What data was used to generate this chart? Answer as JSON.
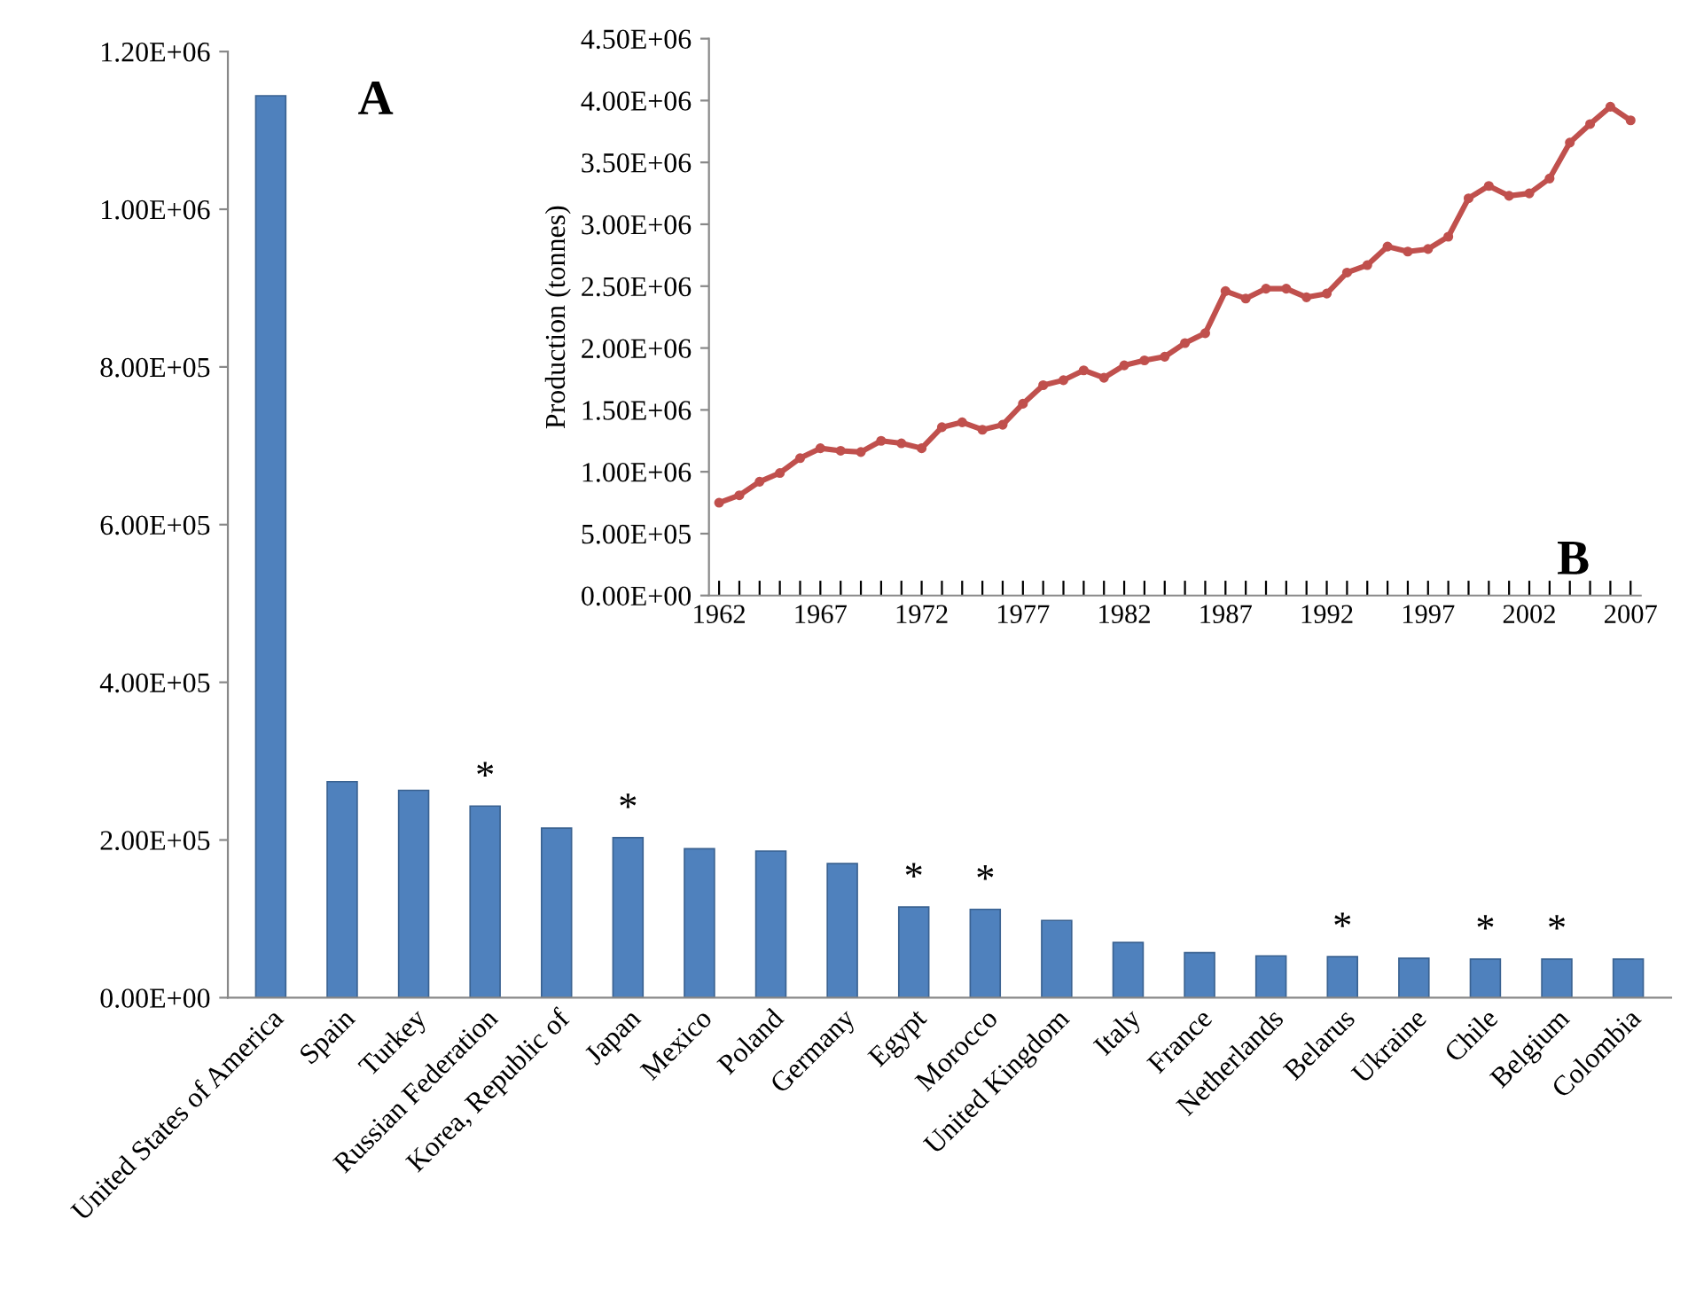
{
  "chart_data": [
    {
      "type": "bar",
      "categories": [
        "United States of America",
        "Spain",
        "Turkey",
        "Russian Federation",
        "Korea, Republic of",
        "Japan",
        "Mexico",
        "Poland",
        "Germany",
        "Egypt",
        "Morocco",
        "United Kingdom",
        "Italy",
        "France",
        "Netherlands",
        "Belarus",
        "Ukraine",
        "Chile",
        "Belgium",
        "Colombia"
      ],
      "series": [
        {
          "color": "#4f81bd",
          "values": [
            1144000,
            274000,
            263000,
            243000,
            215000,
            203000,
            189000,
            186000,
            170000,
            115000,
            112000,
            98000,
            70000,
            57000,
            53000,
            52000,
            50000,
            49000,
            49000,
            49000
          ],
          "value_labels": [
            null,
            null,
            null,
            "*",
            null,
            "*",
            null,
            null,
            null,
            "*",
            "*",
            null,
            null,
            null,
            null,
            "*",
            null,
            "*",
            "*",
            null
          ]
        }
      ],
      "ylim": [
        0,
        1200000
      ],
      "yticks": [
        {
          "value": 0,
          "label": "0.00E+00"
        },
        {
          "value": 200000,
          "label": "2.00E+05"
        },
        {
          "value": 400000,
          "label": "4.00E+05"
        },
        {
          "value": 600000,
          "label": "6.00E+05"
        },
        {
          "value": 800000,
          "label": "8.00E+05"
        },
        {
          "value": 1000000,
          "label": "1.00E+06"
        },
        {
          "value": 1200000,
          "label": "1.20E+06"
        }
      ],
      "grid": false,
      "legend": false,
      "annotations": [
        "A"
      ]
    },
    {
      "type": "line",
      "ylabel": "Production (tonnes)",
      "marker": "circle",
      "line_style": "solid",
      "grid": false,
      "legend": false,
      "x": [
        1962,
        1963,
        1964,
        1965,
        1966,
        1967,
        1968,
        1969,
        1970,
        1971,
        1972,
        1973,
        1974,
        1975,
        1976,
        1977,
        1978,
        1979,
        1980,
        1981,
        1982,
        1983,
        1984,
        1985,
        1986,
        1987,
        1988,
        1989,
        1990,
        1991,
        1992,
        1993,
        1994,
        1995,
        1996,
        1997,
        1998,
        1999,
        2000,
        2001,
        2002,
        2003,
        2004,
        2005,
        2006,
        2007
      ],
      "series": [
        {
          "color": "#c0504d",
          "values": [
            750000,
            810000,
            920000,
            990000,
            1110000,
            1190000,
            1170000,
            1160000,
            1250000,
            1230000,
            1190000,
            1360000,
            1400000,
            1340000,
            1380000,
            1550000,
            1700000,
            1740000,
            1820000,
            1760000,
            1860000,
            1900000,
            1930000,
            2040000,
            2120000,
            2460000,
            2400000,
            2480000,
            2480000,
            2410000,
            2440000,
            2610000,
            2670000,
            2820000,
            2780000,
            2800000,
            2900000,
            3210000,
            3310000,
            3230000,
            3250000,
            3370000,
            3660000,
            3810000,
            3950000,
            3840000
          ]
        }
      ],
      "xlim": [
        1961.5,
        2007.5
      ],
      "xticks": [
        1962,
        {
          "value": 1963,
          "label": null
        },
        {
          "value": 1964,
          "label": null
        },
        {
          "value": 1965,
          "label": null
        },
        {
          "value": 1966,
          "label": null
        },
        1967,
        {
          "value": 1968,
          "label": null
        },
        {
          "value": 1969,
          "label": null
        },
        {
          "value": 1970,
          "label": null
        },
        {
          "value": 1971,
          "label": null
        },
        1972,
        {
          "value": 1973,
          "label": null
        },
        {
          "value": 1974,
          "label": null
        },
        {
          "value": 1975,
          "label": null
        },
        {
          "value": 1976,
          "label": null
        },
        1977,
        {
          "value": 1978,
          "label": null
        },
        {
          "value": 1979,
          "label": null
        },
        {
          "value": 1980,
          "label": null
        },
        {
          "value": 1981,
          "label": null
        },
        1982,
        {
          "value": 1983,
          "label": null
        },
        {
          "value": 1984,
          "label": null
        },
        {
          "value": 1985,
          "label": null
        },
        {
          "value": 1986,
          "label": null
        },
        1987,
        {
          "value": 1988,
          "label": null
        },
        {
          "value": 1989,
          "label": null
        },
        {
          "value": 1990,
          "label": null
        },
        {
          "value": 1991,
          "label": null
        },
        1992,
        {
          "value": 1993,
          "label": null
        },
        {
          "value": 1994,
          "label": null
        },
        {
          "value": 1995,
          "label": null
        },
        {
          "value": 1996,
          "label": null
        },
        1997,
        {
          "value": 1998,
          "label": null
        },
        {
          "value": 1999,
          "label": null
        },
        {
          "value": 2000,
          "label": null
        },
        {
          "value": 2001,
          "label": null
        },
        2002,
        {
          "value": 2003,
          "label": null
        },
        {
          "value": 2004,
          "label": null
        },
        {
          "value": 2005,
          "label": null
        },
        {
          "value": 2006,
          "label": null
        },
        2007
      ],
      "ylim": [
        0,
        4500000
      ],
      "yticks": [
        {
          "value": 0,
          "label": "0.00E+00"
        },
        {
          "value": 500000,
          "label": "5.00E+05"
        },
        {
          "value": 1000000,
          "label": "1.00E+06"
        },
        {
          "value": 1500000,
          "label": "1.50E+06"
        },
        {
          "value": 2000000,
          "label": "2.00E+06"
        },
        {
          "value": 2500000,
          "label": "2.50E+06"
        },
        {
          "value": 3000000,
          "label": "3.00E+06"
        },
        {
          "value": 3500000,
          "label": "3.50E+06"
        },
        {
          "value": 4000000,
          "label": "4.00E+06"
        },
        {
          "value": 4500000,
          "label": "4.50E+06"
        }
      ],
      "annotations": [
        "B"
      ]
    }
  ]
}
